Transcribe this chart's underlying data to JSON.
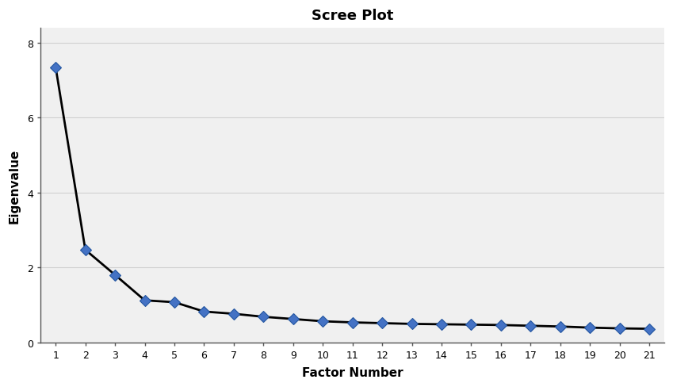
{
  "title": "Scree Plot",
  "xlabel": "Factor Number",
  "ylabel": "Eigenvalue",
  "x": [
    1,
    2,
    3,
    4,
    5,
    6,
    7,
    8,
    9,
    10,
    11,
    12,
    13,
    14,
    15,
    16,
    17,
    18,
    19,
    20,
    21
  ],
  "y": [
    7.35,
    2.47,
    1.8,
    1.12,
    1.07,
    0.82,
    0.76,
    0.68,
    0.62,
    0.56,
    0.53,
    0.51,
    0.49,
    0.48,
    0.47,
    0.46,
    0.44,
    0.42,
    0.39,
    0.37,
    0.36
  ],
  "line_color": "#000000",
  "marker_facecolor": "#4472c4",
  "marker_edgecolor": "#2255a0",
  "background_color": "#ffffff",
  "plot_bg_color": "#f0f0f0",
  "grid_color": "#d0d0d0",
  "ylim": [
    0.0,
    8.4
  ],
  "xlim": [
    0.5,
    21.5
  ],
  "yticks": [
    0,
    2,
    4,
    6,
    8
  ],
  "xticks": [
    1,
    2,
    3,
    4,
    5,
    6,
    7,
    8,
    9,
    10,
    11,
    12,
    13,
    14,
    15,
    16,
    17,
    18,
    19,
    20,
    21
  ],
  "title_fontsize": 13,
  "label_fontsize": 11,
  "tick_fontsize": 9,
  "line_width": 2.0,
  "marker_size": 7,
  "marker_style": "D"
}
